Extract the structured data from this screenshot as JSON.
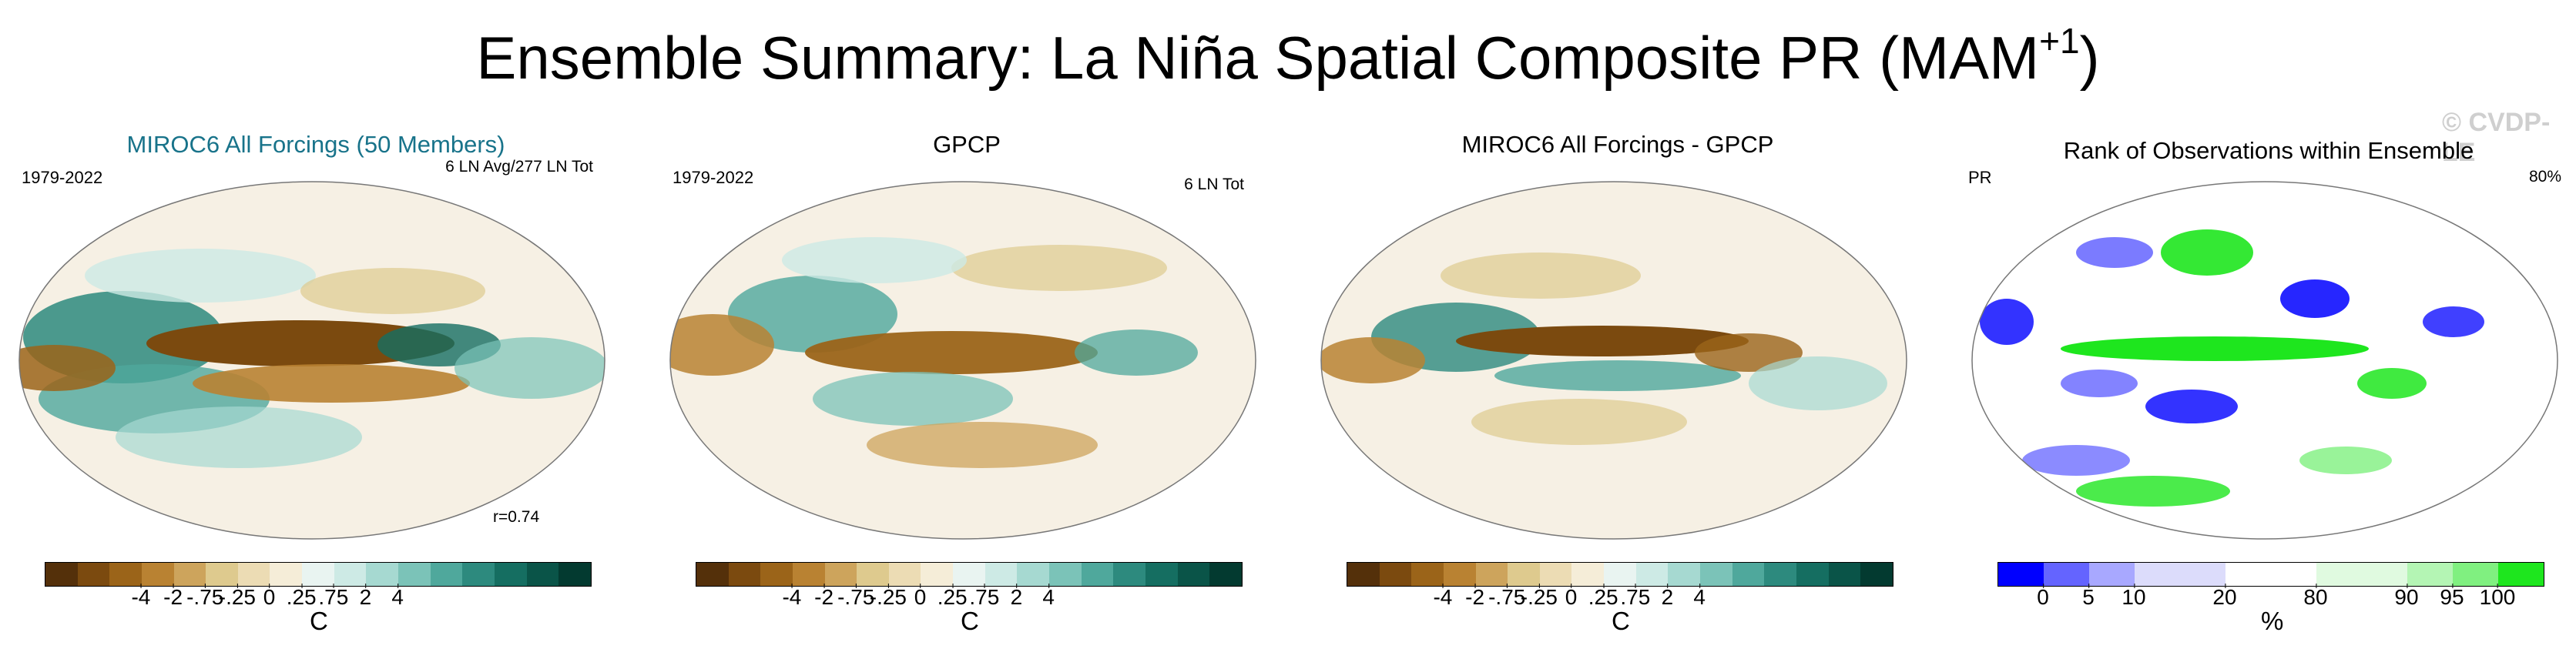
{
  "title": "Ensemble Summary: La Niña Spatial Composite PR (MAM",
  "title_sup": "+1",
  "title_end": ")",
  "watermark": "© CVDP-LE",
  "panels": [
    {
      "title": "MIROC6 All Forcings (50 Members)",
      "left": "1979-2022",
      "right": "6 LN Avg/277 LN Tot",
      "note": "r=0.74"
    },
    {
      "title": "GPCP",
      "left": "1979-2022",
      "right": "6 LN Tot"
    },
    {
      "title": "MIROC6 All Forcings - GPCP"
    },
    {
      "title": "Rank of Observations within Ensemble",
      "left": "PR",
      "right": "80%"
    }
  ],
  "colorbar_div": {
    "colors": [
      "#54300a",
      "#7b4a0f",
      "#9b6419",
      "#b98232",
      "#cda45c",
      "#deca8e",
      "#ecdcb4",
      "#f5edd8",
      "#e9f4f1",
      "#cdeae5",
      "#a6d9d1",
      "#7bc3b8",
      "#4fa89c",
      "#2d8a7e",
      "#156e61",
      "#0a5448",
      "#033a30"
    ],
    "ticks": [
      "-4",
      "-2",
      "-.75",
      "-.25",
      "0",
      ".25",
      ".75",
      "2",
      "4"
    ],
    "unit": "C"
  },
  "colorbar_rank": {
    "colors": [
      "#0000ff",
      "#6464ff",
      "#a8a8ff",
      "#dcdcfb",
      "#dcdcfb",
      "#ffffff",
      "#ffffff",
      "#e0fae0",
      "#e0fae0",
      "#b4f5b4",
      "#80f080",
      "#1ee61e"
    ],
    "ticks": [
      "0",
      "5",
      "10",
      "20",
      "80",
      "90",
      "95",
      "100"
    ],
    "unit": "%"
  }
}
